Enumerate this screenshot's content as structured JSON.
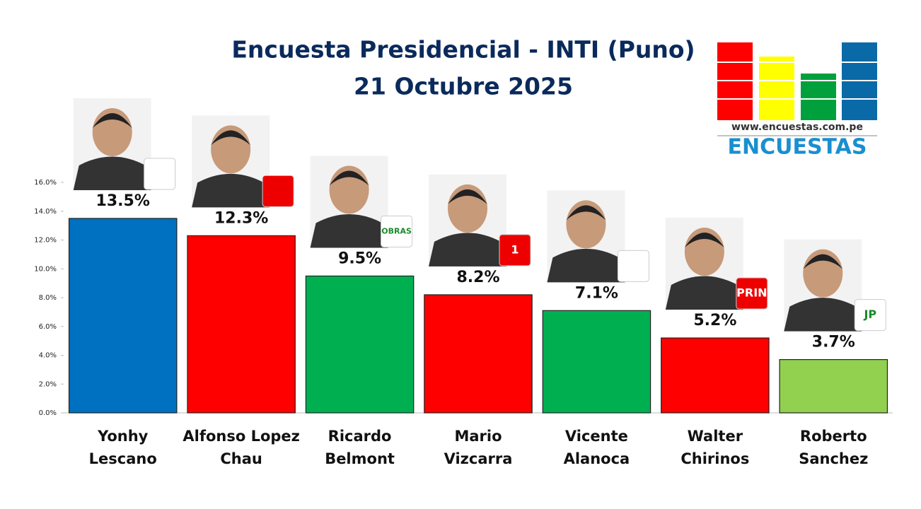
{
  "chart_data": {
    "type": "bar",
    "title": "Encuesta Presidencial - INTI (Puno)",
    "subtitle": "21 Octubre 2025",
    "categories": [
      [
        "Yonhy",
        "Lescano"
      ],
      [
        "Alfonso Lopez",
        "Chau"
      ],
      [
        "Ricardo",
        "Belmont"
      ],
      [
        "Mario",
        "Vizcarra"
      ],
      [
        "Vicente",
        "Alanoca"
      ],
      [
        "Walter",
        "Chirinos"
      ],
      [
        "Roberto",
        "Sanchez"
      ]
    ],
    "values": [
      13.5,
      12.3,
      9.5,
      8.2,
      7.1,
      5.2,
      3.7
    ],
    "value_labels": [
      "13.5%",
      "12.3%",
      "9.5%",
      "8.2%",
      "7.1%",
      "5.2%",
      "3.7%"
    ],
    "colors": [
      "#0070c0",
      "#ff0000",
      "#00b050",
      "#ff0000",
      "#00b050",
      "#ff0000",
      "#92d050"
    ],
    "ylim": [
      0,
      16
    ],
    "yticks": [
      {
        "value": 0,
        "label": "0.0%"
      },
      {
        "value": 2,
        "label": "2.0%"
      },
      {
        "value": 4,
        "label": "4.0%"
      },
      {
        "value": 6,
        "label": "6.0%"
      },
      {
        "value": 8,
        "label": "8.0%"
      },
      {
        "value": 10,
        "label": "10.0%"
      },
      {
        "value": 12,
        "label": "12.0%"
      },
      {
        "value": 14,
        "label": "14.0%"
      },
      {
        "value": 16,
        "label": "16.0%"
      }
    ],
    "grid": false
  },
  "logo": {
    "url": "www.encuestas.com.pe",
    "name": "ENCUESTAS"
  },
  "party_logos": [
    "OBRAS",
    "1",
    "PRIN",
    "JP"
  ]
}
